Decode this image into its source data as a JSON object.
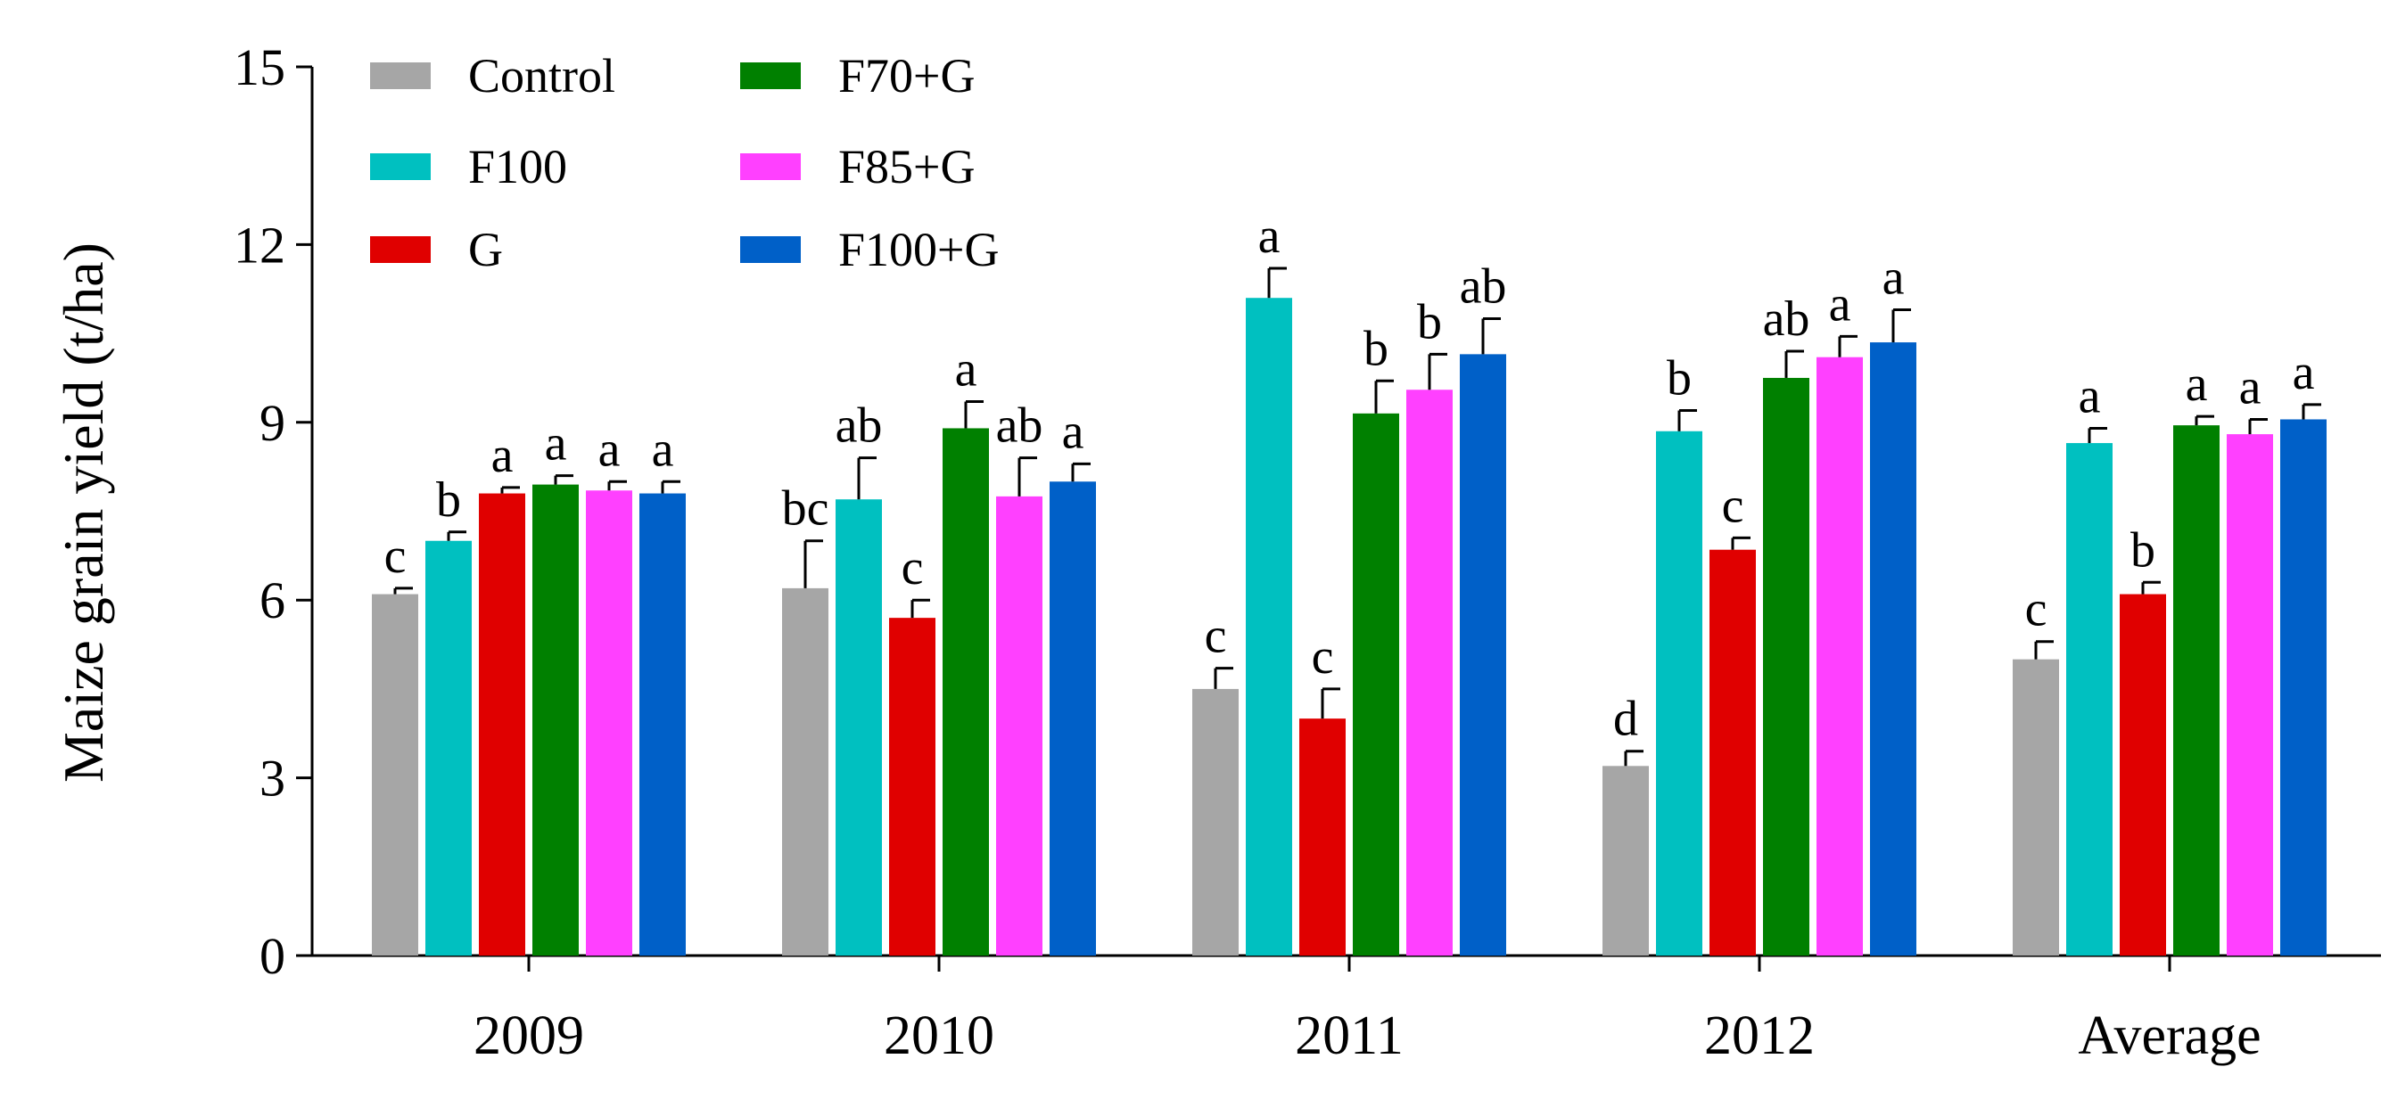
{
  "chart_data": {
    "type": "bar",
    "title": "",
    "xlabel": "",
    "ylabel": "Maize grain yield (t/ha)",
    "ylim": [
      0,
      15
    ],
    "yticks": [
      0,
      3,
      6,
      9,
      12,
      15
    ],
    "grid": false,
    "legend_position": "top-left",
    "categories": [
      "2009",
      "2010",
      "2011",
      "2012",
      "Average"
    ],
    "series": [
      {
        "name": "Control",
        "color": "#A6A6A6",
        "values": [
          6.1,
          6.2,
          4.5,
          3.2,
          5.0
        ],
        "errors": [
          0.1,
          0.8,
          0.35,
          0.25,
          0.3
        ],
        "letters": [
          "c",
          "bc",
          "c",
          "d",
          "c"
        ]
      },
      {
        "name": "F100",
        "color": "#00C0C0",
        "values": [
          7.0,
          7.7,
          11.1,
          8.85,
          8.65
        ],
        "errors": [
          0.15,
          0.7,
          0.5,
          0.35,
          0.25
        ],
        "letters": [
          "b",
          "ab",
          "a",
          "b",
          "a"
        ]
      },
      {
        "name": "G",
        "color": "#E00000",
        "values": [
          7.8,
          5.7,
          4.0,
          6.85,
          6.1
        ],
        "errors": [
          0.1,
          0.3,
          0.5,
          0.2,
          0.2
        ],
        "letters": [
          "a",
          "c",
          "c",
          "c",
          "b"
        ]
      },
      {
        "name": "F70+G",
        "color": "#008000",
        "values": [
          7.95,
          8.9,
          9.15,
          9.75,
          8.95
        ],
        "errors": [
          0.15,
          0.45,
          0.55,
          0.45,
          0.15
        ],
        "letters": [
          "a",
          "a",
          "b",
          "ab",
          "a"
        ]
      },
      {
        "name": "F85+G",
        "color": "#FF40FF",
        "values": [
          7.85,
          7.75,
          9.55,
          10.1,
          8.8
        ],
        "errors": [
          0.15,
          0.65,
          0.6,
          0.35,
          0.25
        ],
        "letters": [
          "a",
          "ab",
          "b",
          "a",
          "a"
        ]
      },
      {
        "name": "F100+G",
        "color": "#0060C8",
        "values": [
          7.8,
          8.0,
          10.15,
          10.35,
          9.05
        ],
        "errors": [
          0.2,
          0.3,
          0.6,
          0.55,
          0.25
        ],
        "letters": [
          "a",
          "a",
          "ab",
          "a",
          "a"
        ]
      }
    ]
  }
}
